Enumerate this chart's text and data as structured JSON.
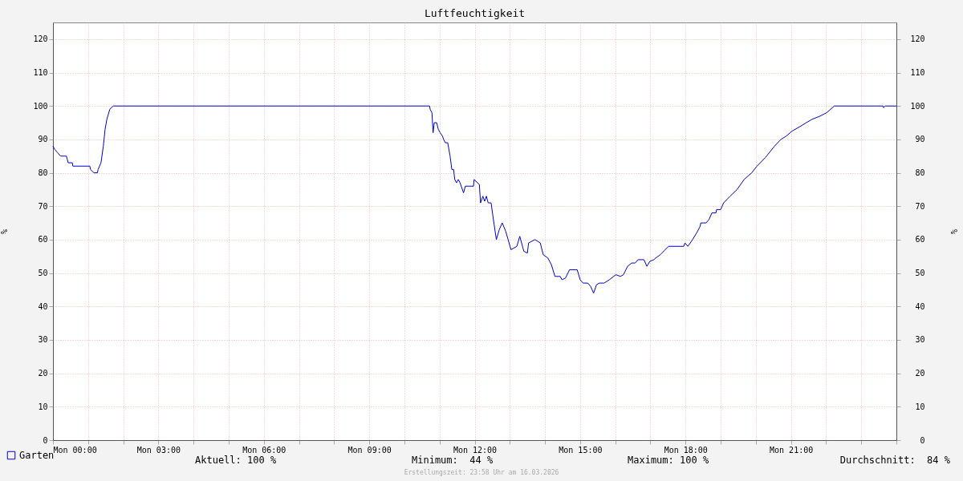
{
  "chart_data": {
    "type": "line",
    "title": "Luftfeuchtigkeit",
    "ylabel": "%",
    "y2label": "%",
    "x": [
      "2026-03-16T00:00",
      "2026-03-16T00:03",
      "2026-03-16T00:08",
      "2026-03-16T00:13",
      "2026-03-16T00:23",
      "2026-03-16T00:26",
      "2026-03-16T00:33",
      "2026-03-16T00:34",
      "2026-03-16T01:03",
      "2026-03-16T01:04",
      "2026-03-16T01:10",
      "2026-03-16T01:16",
      "2026-03-16T01:17",
      "2026-03-16T01:22",
      "2026-03-16T01:26",
      "2026-03-16T01:29",
      "2026-03-16T01:32",
      "2026-03-16T01:37",
      "2026-03-16T01:43",
      "2026-03-16T10:41",
      "2026-03-16T10:43",
      "2026-03-16T10:44",
      "2026-03-16T10:47",
      "2026-03-16T10:49",
      "2026-03-16T10:51",
      "2026-03-16T10:55",
      "2026-03-16T10:58",
      "2026-03-16T11:01",
      "2026-03-16T11:05",
      "2026-03-16T11:07",
      "2026-03-16T11:10",
      "2026-03-16T11:14",
      "2026-03-16T11:18",
      "2026-03-16T11:21",
      "2026-03-16T11:24",
      "2026-03-16T11:26",
      "2026-03-16T11:29",
      "2026-03-16T11:32",
      "2026-03-16T11:35",
      "2026-03-16T11:41",
      "2026-03-16T11:44",
      "2026-03-16T11:58",
      "2026-03-16T11:59",
      "2026-03-16T12:08",
      "2026-03-16T12:10",
      "2026-03-16T12:14",
      "2026-03-16T12:17",
      "2026-03-16T12:20",
      "2026-03-16T12:23",
      "2026-03-16T12:28",
      "2026-03-16T12:32",
      "2026-03-16T12:37",
      "2026-03-16T12:42",
      "2026-03-16T12:47",
      "2026-03-16T12:53",
      "2026-03-16T13:02",
      "2026-03-16T13:12",
      "2026-03-16T13:17",
      "2026-03-16T13:24",
      "2026-03-16T13:30",
      "2026-03-16T13:32",
      "2026-03-16T13:43",
      "2026-03-16T13:52",
      "2026-03-16T13:57",
      "2026-03-16T14:05",
      "2026-03-16T14:11",
      "2026-03-16T14:17",
      "2026-03-16T14:26",
      "2026-03-16T14:29",
      "2026-03-16T14:35",
      "2026-03-16T14:42",
      "2026-03-16T14:55",
      "2026-03-16T15:00",
      "2026-03-16T15:05",
      "2026-03-16T15:13",
      "2026-03-16T15:18",
      "2026-03-16T15:23",
      "2026-03-16T15:28",
      "2026-03-16T15:33",
      "2026-03-16T15:41",
      "2026-03-16T15:50",
      "2026-03-16T16:01",
      "2026-03-16T16:09",
      "2026-03-16T16:14",
      "2026-03-16T16:21",
      "2026-03-16T16:28",
      "2026-03-16T16:34",
      "2026-03-16T16:39",
      "2026-03-16T16:49",
      "2026-03-16T16:54",
      "2026-03-16T16:59",
      "2026-03-16T17:06",
      "2026-03-16T17:09",
      "2026-03-16T17:17",
      "2026-03-16T17:31",
      "2026-03-16T17:57",
      "2026-03-16T17:59",
      "2026-03-16T18:04",
      "2026-03-16T18:12",
      "2026-03-16T18:19",
      "2026-03-16T18:25",
      "2026-03-16T18:26",
      "2026-03-16T18:35",
      "2026-03-16T18:40",
      "2026-03-16T18:45",
      "2026-03-16T18:52",
      "2026-03-16T18:53",
      "2026-03-16T19:00",
      "2026-03-16T19:05",
      "2026-03-16T19:16",
      "2026-03-16T19:28",
      "2026-03-16T19:40",
      "2026-03-16T19:53",
      "2026-03-16T20:02",
      "2026-03-16T20:16",
      "2026-03-16T20:32",
      "2026-03-16T20:43",
      "2026-03-16T20:52",
      "2026-03-16T21:02",
      "2026-03-16T21:17",
      "2026-03-16T21:26",
      "2026-03-16T21:36",
      "2026-03-16T21:50",
      "2026-03-16T22:01",
      "2026-03-16T22:14",
      "2026-03-16T23:37",
      "2026-03-16T23:38",
      "2026-03-16T23:41",
      "2026-03-17T00:00"
    ],
    "series": [
      {
        "name": "Garten",
        "color": "#0000cc",
        "values": [
          88,
          87,
          86,
          85,
          85,
          83,
          83,
          82,
          82,
          81,
          80,
          80,
          81,
          83,
          88,
          93,
          96,
          99,
          100,
          100,
          100,
          99,
          98,
          92,
          95,
          95,
          93,
          92,
          91,
          90,
          89,
          89,
          85,
          81,
          81,
          78,
          77,
          78,
          77,
          74,
          76,
          76,
          78,
          76.5,
          71,
          73,
          71.5,
          73,
          71,
          71,
          66,
          60,
          63,
          65,
          62.5,
          57,
          58,
          61,
          56.5,
          56,
          59,
          60,
          59,
          55.5,
          54.5,
          52.5,
          49,
          49,
          48,
          48.5,
          51,
          51,
          48,
          47,
          47,
          46,
          44,
          46.5,
          47,
          47,
          48,
          49.5,
          49,
          49.5,
          52,
          53,
          53,
          54,
          54,
          52,
          53.5,
          54,
          54.5,
          55.5,
          58,
          58,
          59,
          58,
          60,
          62,
          64,
          65,
          65,
          66,
          68,
          68,
          69,
          69,
          71,
          73,
          75,
          78,
          80,
          82,
          84.5,
          88,
          90,
          91,
          92.5,
          94,
          95,
          96,
          97,
          98,
          100,
          100,
          99.5,
          100,
          100
        ]
      }
    ],
    "xlim": [
      "2026-03-16T00:00",
      "2026-03-17T00:00"
    ],
    "xticks": [
      {
        "value": "2026-03-16T00:00",
        "label": "Mon 00:00"
      },
      {
        "value": "2026-03-16T01:00",
        "label": null
      },
      {
        "value": "2026-03-16T02:00",
        "label": null
      },
      {
        "value": "2026-03-16T03:00",
        "label": "Mon 03:00"
      },
      {
        "value": "2026-03-16T04:00",
        "label": null
      },
      {
        "value": "2026-03-16T05:00",
        "label": null
      },
      {
        "value": "2026-03-16T06:00",
        "label": "Mon 06:00"
      },
      {
        "value": "2026-03-16T07:00",
        "label": null
      },
      {
        "value": "2026-03-16T08:00",
        "label": null
      },
      {
        "value": "2026-03-16T09:00",
        "label": "Mon 09:00"
      },
      {
        "value": "2026-03-16T10:00",
        "label": null
      },
      {
        "value": "2026-03-16T11:00",
        "label": null
      },
      {
        "value": "2026-03-16T12:00",
        "label": "Mon 12:00"
      },
      {
        "value": "2026-03-16T13:00",
        "label": null
      },
      {
        "value": "2026-03-16T14:00",
        "label": null
      },
      {
        "value": "2026-03-16T15:00",
        "label": "Mon 15:00"
      },
      {
        "value": "2026-03-16T16:00",
        "label": null
      },
      {
        "value": "2026-03-16T17:00",
        "label": null
      },
      {
        "value": "2026-03-16T18:00",
        "label": "Mon 18:00"
      },
      {
        "value": "2026-03-16T19:00",
        "label": null
      },
      {
        "value": "2026-03-16T20:00",
        "label": null
      },
      {
        "value": "2026-03-16T21:00",
        "label": "Mon 21:00"
      },
      {
        "value": "2026-03-16T22:00",
        "label": null
      },
      {
        "value": "2026-03-16T23:00",
        "label": null
      },
      {
        "value": "2026-03-17T00:00",
        "label": null
      }
    ],
    "ylim": [
      0,
      125
    ],
    "yticks": [
      0,
      10,
      20,
      30,
      40,
      50,
      60,
      70,
      80,
      90,
      100,
      110,
      120
    ],
    "y2lim": [
      0,
      125
    ],
    "y2ticks": [
      0,
      10,
      20,
      30,
      40,
      50,
      60,
      70,
      80,
      90,
      100,
      110,
      120
    ],
    "grid": true,
    "legend": "bottom left",
    "marker": "none",
    "line_style": "solid",
    "annotations": [
      "Aktuell: 100 %",
      "Minimum:  44 %",
      "Maximum: 100 %",
      "Durchschnitt:  84 %",
      "Erstellungszeit: 23:58 Uhr am 16.03.2026"
    ]
  }
}
